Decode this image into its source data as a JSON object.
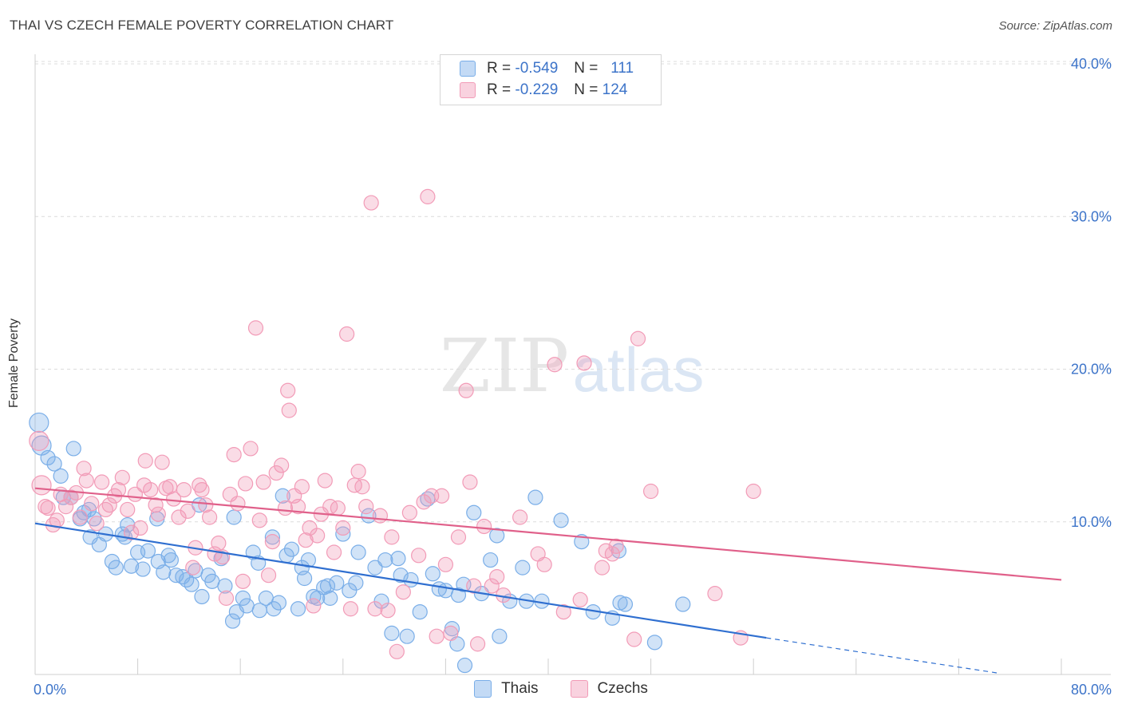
{
  "title": "THAI VS CZECH FEMALE POVERTY CORRELATION CHART",
  "source": "Source: ZipAtlas.com",
  "watermark": {
    "zip": "ZIP",
    "atlas": "atlas"
  },
  "legend_top": [
    {
      "r_label": "R =",
      "r_value": "-0.549",
      "n_label": "N =",
      "n_value": "111",
      "color": "#7aaee8"
    },
    {
      "r_label": "R =",
      "r_value": "-0.229",
      "n_label": "N =",
      "n_value": "124",
      "color": "#f29bb7"
    }
  ],
  "legend_bottom": [
    {
      "label": "Thais",
      "color": "#7aaee8"
    },
    {
      "label": "Czechs",
      "color": "#f29bb7"
    }
  ],
  "chart_data": {
    "type": "scatter",
    "title": "THAI VS CZECH FEMALE POVERTY CORRELATION CHART",
    "xlabel": "",
    "ylabel": "Female Poverty",
    "xlim": [
      0,
      80
    ],
    "ylim": [
      0,
      40
    ],
    "x_tick_labels": [
      "0.0%",
      "80.0%"
    ],
    "y_tick_labels": [
      "10.0%",
      "20.0%",
      "30.0%",
      "40.0%"
    ],
    "y_ticks": [
      10,
      20,
      30,
      40
    ],
    "grid": true,
    "legend_placement": "bottom",
    "series": [
      {
        "name": "Thais",
        "color": "#7aaee8",
        "line_color": "#2f6fd0",
        "trend": {
          "x0": 0,
          "y0": 9.9,
          "x1": 57,
          "y1": 2.4,
          "dash_to_x": 75,
          "dash_to_y": 0.1
        },
        "points": [
          [
            0.3,
            16.5
          ],
          [
            0.5,
            15
          ],
          [
            1,
            14.2
          ],
          [
            1.5,
            13.8
          ],
          [
            2,
            13
          ],
          [
            3,
            14.8
          ],
          [
            2.2,
            11.6
          ],
          [
            2.8,
            11.6
          ],
          [
            3.5,
            10.2
          ],
          [
            3.8,
            10.6
          ],
          [
            4.2,
            10.8
          ],
          [
            4.6,
            10.2
          ],
          [
            4.3,
            9
          ],
          [
            5,
            8.5
          ],
          [
            5.5,
            9.2
          ],
          [
            6,
            7.4
          ],
          [
            6.3,
            7
          ],
          [
            6.8,
            9.2
          ],
          [
            7,
            9
          ],
          [
            7.2,
            9.8
          ],
          [
            7.5,
            7.1
          ],
          [
            8,
            8
          ],
          [
            8.4,
            6.9
          ],
          [
            8.8,
            8.1
          ],
          [
            9.5,
            10.2
          ],
          [
            9.6,
            7.4
          ],
          [
            10,
            6.7
          ],
          [
            10.4,
            7.8
          ],
          [
            10.6,
            7.5
          ],
          [
            11,
            6.5
          ],
          [
            11.5,
            6.4
          ],
          [
            11.8,
            6.2
          ],
          [
            12.2,
            5.9
          ],
          [
            12.5,
            6.8
          ],
          [
            12.8,
            11.1
          ],
          [
            13,
            5.1
          ],
          [
            13.5,
            6.5
          ],
          [
            13.8,
            6.1
          ],
          [
            14.5,
            7.6
          ],
          [
            14.8,
            5.8
          ],
          [
            15.5,
            10.3
          ],
          [
            15.4,
            3.5
          ],
          [
            15.7,
            4.1
          ],
          [
            16.2,
            5
          ],
          [
            16.5,
            4.5
          ],
          [
            17,
            8
          ],
          [
            17.4,
            7.3
          ],
          [
            17.5,
            4.2
          ],
          [
            18,
            5
          ],
          [
            18.5,
            9
          ],
          [
            18.6,
            4.3
          ],
          [
            19,
            4.7
          ],
          [
            19.3,
            11.7
          ],
          [
            19.6,
            7.8
          ],
          [
            20,
            8.2
          ],
          [
            20.5,
            4.3
          ],
          [
            20.8,
            7
          ],
          [
            21,
            6.3
          ],
          [
            21.3,
            7.5
          ],
          [
            21.7,
            5.1
          ],
          [
            22,
            5
          ],
          [
            22.5,
            5.7
          ],
          [
            22.8,
            5.8
          ],
          [
            23,
            5
          ],
          [
            23.5,
            6
          ],
          [
            24,
            9.2
          ],
          [
            24.5,
            5.5
          ],
          [
            25,
            6
          ],
          [
            25.2,
            8
          ],
          [
            26,
            10.4
          ],
          [
            26.5,
            7
          ],
          [
            27,
            4.8
          ],
          [
            27.3,
            7.5
          ],
          [
            27.8,
            2.7
          ],
          [
            28.3,
            7.6
          ],
          [
            28.5,
            6.5
          ],
          [
            29,
            2.5
          ],
          [
            29.3,
            6.2
          ],
          [
            30,
            4.1
          ],
          [
            30.6,
            11.5
          ],
          [
            31,
            6.6
          ],
          [
            31.5,
            5.6
          ],
          [
            32,
            5.5
          ],
          [
            32.5,
            3
          ],
          [
            32.9,
            2
          ],
          [
            33,
            5.2
          ],
          [
            33.5,
            0.6
          ],
          [
            33.4,
            5.9
          ],
          [
            34.2,
            10.6
          ],
          [
            34.8,
            5.3
          ],
          [
            35.5,
            7.5
          ],
          [
            36,
            9.1
          ],
          [
            36.2,
            2.5
          ],
          [
            37,
            4.8
          ],
          [
            38,
            7
          ],
          [
            38.3,
            4.8
          ],
          [
            39,
            11.6
          ],
          [
            39.5,
            4.8
          ],
          [
            41,
            10.1
          ],
          [
            42.6,
            8.7
          ],
          [
            43.5,
            4.1
          ],
          [
            45,
            3.7
          ],
          [
            45.5,
            8.1
          ],
          [
            45.6,
            4.7
          ],
          [
            46,
            4.6
          ],
          [
            48.3,
            2.1
          ],
          [
            50.5,
            4.6
          ]
        ]
      },
      {
        "name": "Czechs",
        "color": "#f29bb7",
        "line_color": "#e0608a",
        "trend": {
          "x0": 0,
          "y0": 12.2,
          "x1": 80,
          "y1": 6.2
        },
        "points": [
          [
            0.3,
            15.3
          ],
          [
            0.5,
            12.4
          ],
          [
            0.8,
            11
          ],
          [
            1,
            10.9
          ],
          [
            1.4,
            9.8
          ],
          [
            1.7,
            10.1
          ],
          [
            2,
            11.8
          ],
          [
            2.4,
            11
          ],
          [
            2.8,
            11.6
          ],
          [
            3.2,
            11.9
          ],
          [
            3.5,
            10.3
          ],
          [
            3.8,
            13.5
          ],
          [
            4,
            12.7
          ],
          [
            4.4,
            11.2
          ],
          [
            4.8,
            9.9
          ],
          [
            5.2,
            12.6
          ],
          [
            5.5,
            10.8
          ],
          [
            5.8,
            11.1
          ],
          [
            6.2,
            11.7
          ],
          [
            6.5,
            12.1
          ],
          [
            6.8,
            12.9
          ],
          [
            7.2,
            10.8
          ],
          [
            7.5,
            9.3
          ],
          [
            7.8,
            11.8
          ],
          [
            8.2,
            9.6
          ],
          [
            8.5,
            12.4
          ],
          [
            8.6,
            14
          ],
          [
            9,
            12.1
          ],
          [
            9.4,
            11.1
          ],
          [
            9.6,
            10.5
          ],
          [
            9.9,
            13.9
          ],
          [
            10.2,
            12.2
          ],
          [
            10.5,
            12.3
          ],
          [
            10.8,
            11.5
          ],
          [
            11.2,
            10.3
          ],
          [
            11.6,
            12.1
          ],
          [
            11.9,
            10.7
          ],
          [
            12.3,
            7
          ],
          [
            12.5,
            8.3
          ],
          [
            12.8,
            12.4
          ],
          [
            13,
            12.1
          ],
          [
            13.3,
            11.1
          ],
          [
            13.6,
            10.3
          ],
          [
            14,
            7.9
          ],
          [
            14.3,
            8.6
          ],
          [
            14.6,
            7.7
          ],
          [
            14.9,
            5
          ],
          [
            15.2,
            11.8
          ],
          [
            15.5,
            14.4
          ],
          [
            15.8,
            11.2
          ],
          [
            16.2,
            6.1
          ],
          [
            16.4,
            12.5
          ],
          [
            16.8,
            14.8
          ],
          [
            17.2,
            22.7
          ],
          [
            17.5,
            10.1
          ],
          [
            17.8,
            12.6
          ],
          [
            18.2,
            6.5
          ],
          [
            18.5,
            8.7
          ],
          [
            18.8,
            13.2
          ],
          [
            19.2,
            13.7
          ],
          [
            19.5,
            10.9
          ],
          [
            19.7,
            18.6
          ],
          [
            19.8,
            17.3
          ],
          [
            20.2,
            11.7
          ],
          [
            20.5,
            11
          ],
          [
            20.8,
            12.3
          ],
          [
            21.1,
            8.8
          ],
          [
            21.4,
            9.6
          ],
          [
            21.7,
            4.5
          ],
          [
            22,
            9.1
          ],
          [
            22.3,
            10.5
          ],
          [
            22.6,
            12.7
          ],
          [
            23,
            11
          ],
          [
            23.3,
            8
          ],
          [
            23.6,
            10.9
          ],
          [
            24,
            9.6
          ],
          [
            24.3,
            22.3
          ],
          [
            24.6,
            4.3
          ],
          [
            24.9,
            12.4
          ],
          [
            25.2,
            13.3
          ],
          [
            25.5,
            12.3
          ],
          [
            25.8,
            11
          ],
          [
            26.2,
            30.9
          ],
          [
            26.5,
            4.3
          ],
          [
            26.9,
            10.4
          ],
          [
            27.5,
            4.2
          ],
          [
            27.8,
            9
          ],
          [
            28.2,
            1.5
          ],
          [
            28.7,
            5.4
          ],
          [
            29.2,
            10.6
          ],
          [
            29.9,
            7.8
          ],
          [
            30.3,
            11.3
          ],
          [
            30.6,
            31.3
          ],
          [
            30.9,
            11.7
          ],
          [
            31.3,
            2.5
          ],
          [
            31.7,
            11.7
          ],
          [
            32,
            7.2
          ],
          [
            32.4,
            2.7
          ],
          [
            33,
            9
          ],
          [
            33.6,
            18.6
          ],
          [
            33.9,
            12.6
          ],
          [
            34.2,
            5.8
          ],
          [
            34.5,
            2
          ],
          [
            35,
            9.7
          ],
          [
            35.6,
            5.8
          ],
          [
            36,
            6.4
          ],
          [
            36.5,
            5.2
          ],
          [
            37.8,
            10.3
          ],
          [
            39.2,
            7.9
          ],
          [
            39.7,
            7.2
          ],
          [
            40.5,
            20.3
          ],
          [
            41.2,
            4.1
          ],
          [
            42.5,
            4.9
          ],
          [
            42.8,
            20.4
          ],
          [
            44.2,
            7
          ],
          [
            44.5,
            8.1
          ],
          [
            45,
            7.9
          ],
          [
            45.3,
            8.4
          ],
          [
            46.7,
            2.3
          ],
          [
            47,
            22
          ],
          [
            48,
            12
          ],
          [
            53,
            5.3
          ],
          [
            55,
            2.4
          ],
          [
            56,
            12
          ]
        ]
      }
    ]
  }
}
